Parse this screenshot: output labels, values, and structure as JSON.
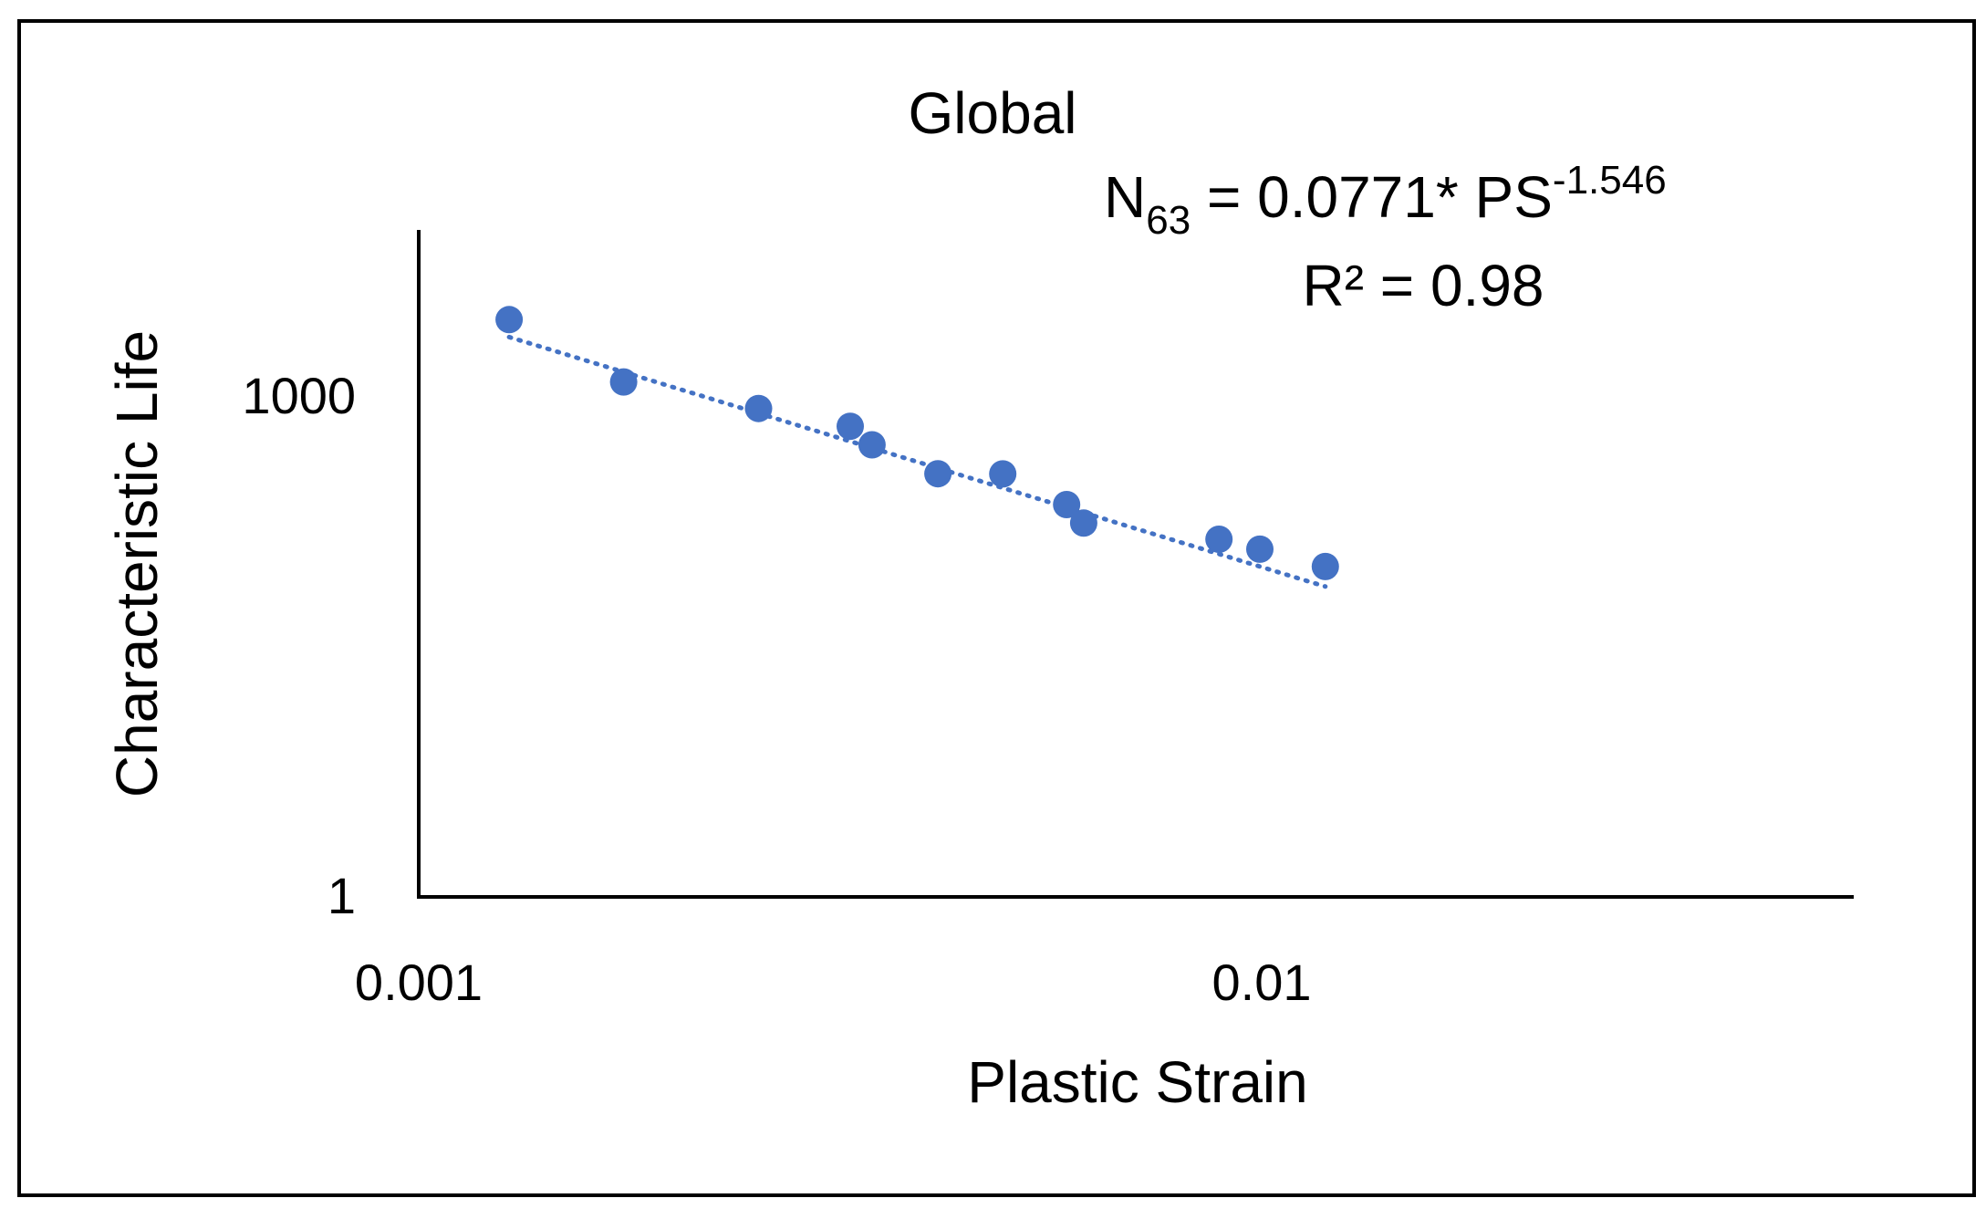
{
  "chart_data": {
    "type": "scatter",
    "title": "Global",
    "xlabel": "Plastic Strain",
    "ylabel": "Characteristic Life",
    "x_scale": "log",
    "y_scale": "log",
    "xlim": [
      0.001,
      0.06
    ],
    "ylim": [
      1,
      15000
    ],
    "x_ticks": [
      {
        "value": 0.001,
        "label": "0.001"
      },
      {
        "value": 0.01,
        "label": "0.01"
      }
    ],
    "y_ticks": [
      {
        "value": 1,
        "label": "1"
      },
      {
        "value": 1000,
        "label": "1000"
      }
    ],
    "grid": false,
    "legend": "none",
    "series": [
      {
        "color": "#4472C4",
        "points": [
          {
            "x": 0.00128,
            "y": 2910
          },
          {
            "x": 0.00175,
            "y": 1230
          },
          {
            "x": 0.00253,
            "y": 852
          },
          {
            "x": 0.00325,
            "y": 666
          },
          {
            "x": 0.00345,
            "y": 516
          },
          {
            "x": 0.00413,
            "y": 346
          },
          {
            "x": 0.00493,
            "y": 345
          },
          {
            "x": 0.00587,
            "y": 226
          },
          {
            "x": 0.00615,
            "y": 175
          },
          {
            "x": 0.0089,
            "y": 140
          },
          {
            "x": 0.00995,
            "y": 122
          },
          {
            "x": 0.0119,
            "y": 96
          }
        ]
      }
    ],
    "trendline": {
      "style": "dotted",
      "color": "#4472C4",
      "type": "power",
      "coefficient": 0.0771,
      "exponent": -1.546,
      "x_range": [
        0.00128,
        0.0119
      ]
    },
    "annotation": {
      "equation_main": "N",
      "equation_sub": "63",
      "equation_mid": " = 0.0771* PS",
      "equation_sup": "-1.546",
      "r_squared": "R² = 0.98"
    }
  }
}
